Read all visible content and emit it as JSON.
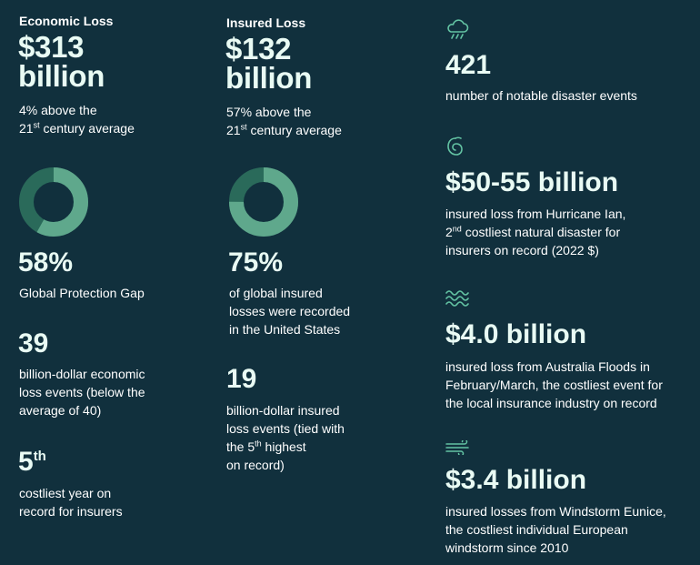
{
  "colors": {
    "background": "#11303d",
    "accent_teal": "#63c3a3",
    "donut_light": "#5fa88c",
    "donut_dark": "#2a6a5a",
    "value_text": "#e9fbf4"
  },
  "economic": {
    "label": "Economic Loss",
    "value_line1": "$313",
    "value_line2": "billion",
    "note_line1": "4% above the",
    "note_pre": "21",
    "note_sup": "st",
    "note_post": " century average",
    "donut_fraction": 0.58,
    "gap_value": "58%",
    "gap_label": "Global Protection Gap",
    "events_value": "39",
    "events_line1": "billion-dollar economic",
    "events_line2": "loss events (below the",
    "events_line3": "average of 40)",
    "rank_value": "5",
    "rank_sup": "th",
    "rank_line1": "costliest year on",
    "rank_line2": "record for insurers"
  },
  "insured": {
    "label": "Insured Loss",
    "value_line1": "$132",
    "value_line2": "billion",
    "note_line1": "57% above the",
    "note_pre": "21",
    "note_sup": "st",
    "note_post": " century average",
    "donut_fraction": 0.75,
    "share_value": "75%",
    "share_line1": "of global insured",
    "share_line2": "losses were recorded",
    "share_line3": "in the United States",
    "events_value": "19",
    "events_line1": "billion-dollar insured",
    "events_line2": "loss events (tied with",
    "events_line3_pre": "the 5",
    "events_line3_sup": "th",
    "events_line3_post": " highest",
    "events_line4": "on record)"
  },
  "events": [
    {
      "icon": "storm-cloud-icon",
      "value": "421",
      "line1": "number of notable disaster events"
    },
    {
      "icon": "hurricane-icon",
      "value": "$50-55 billion",
      "line1": "insured loss from Hurricane Ian,",
      "line2_pre": "2",
      "line2_sup": "nd",
      "line2_post": " costliest natural disaster for",
      "line3": "insurers on record (2022 $)"
    },
    {
      "icon": "flood-waves-icon",
      "value": "$4.0 billion",
      "line1": "insured loss from Australia Floods in",
      "line2": "February/March, the costliest event for",
      "line3": "the local insurance industry on record"
    },
    {
      "icon": "wind-icon",
      "value": "$3.4 billion",
      "line1": "insured losses from Windstorm Eunice,",
      "line2": "the costliest individual European",
      "line3": "windstorm since 2010"
    }
  ]
}
